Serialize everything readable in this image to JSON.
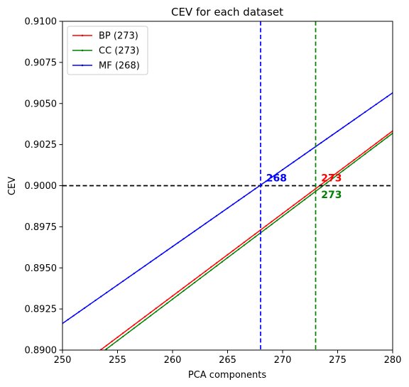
{
  "chart_data": {
    "type": "line",
    "title": "CEV for each dataset",
    "xlabel": "PCA components",
    "ylabel": "CEV",
    "xlim": [
      250,
      280
    ],
    "ylim": [
      0.89,
      0.91
    ],
    "xticks": [
      250,
      255,
      260,
      265,
      270,
      275,
      280
    ],
    "xtick_labels": [
      "250",
      "255",
      "260",
      "265",
      "270",
      "275",
      "280"
    ],
    "yticks": [
      0.89,
      0.8925,
      0.895,
      0.8975,
      0.9,
      0.9025,
      0.905,
      0.9075,
      0.91
    ],
    "ytick_labels": [
      "0.8900",
      "0.8925",
      "0.8950",
      "0.8975",
      "0.9000",
      "0.9025",
      "0.9050",
      "0.9075",
      "0.9100"
    ],
    "legend_position": "top-left",
    "grid": false,
    "series": [
      {
        "name": "BP (273)",
        "color": "#ff0000",
        "x_start": 250,
        "x_end": 280,
        "y_start": 0.88827,
        "y_end": 0.90333
      },
      {
        "name": "CC (273)",
        "color": "#008000",
        "x_start": 250,
        "x_end": 280,
        "y_start": 0.88805,
        "y_end": 0.90319
      },
      {
        "name": "MF (268)",
        "color": "#0000ff",
        "x_start": 250,
        "x_end": 280,
        "y_start": 0.89162,
        "y_end": 0.90565
      }
    ],
    "hline": {
      "y": 0.9,
      "color": "#000000",
      "style": "dashed"
    },
    "vlines": [
      {
        "x": 268,
        "color": "#0000ff",
        "style": "dashed"
      },
      {
        "x": 273,
        "color": "#008000",
        "style": "dashed"
      }
    ],
    "annotations": [
      {
        "text": "268",
        "x": 268.5,
        "y": 0.90047,
        "color": "#0000ff"
      },
      {
        "text": "273",
        "x": 273.5,
        "y": 0.90047,
        "color": "#ff0000"
      },
      {
        "text": "273",
        "x": 273.5,
        "y": 0.89947,
        "color": "#008000"
      }
    ]
  }
}
